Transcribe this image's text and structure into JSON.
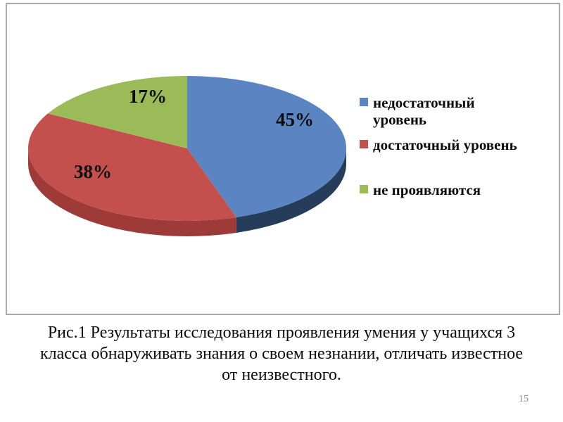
{
  "slide": {
    "caption_lines": [
      "Рис.1 Результаты исследования проявления умения у учащихся 3",
      "класса обнаруживать знания о своем незнании, отличать известное",
      "от неизвестного."
    ],
    "page_number": "15"
  },
  "chart_data": {
    "type": "pie",
    "style": "3d",
    "title": "",
    "start_angle_deg": -90,
    "direction": "clockwise",
    "legend_position": "right",
    "labels_shown": true,
    "total": 100,
    "slices": [
      {
        "label": "недостаточный уровень",
        "legend_lines": [
          "недостаточный",
          "уровень"
        ],
        "value": 45,
        "display": "45%",
        "color": "#5B84C2",
        "side_color": "#263C5B"
      },
      {
        "label": "достаточный уровень",
        "legend_lines": [
          "достаточный уровень"
        ],
        "value": 38,
        "display": "38%",
        "color": "#C4504E",
        "side_color": "#9E3B38"
      },
      {
        "label": "не проявляются",
        "legend_lines": [
          "не проявляются"
        ],
        "value": 17,
        "display": "17%",
        "color": "#9BBB59",
        "side_color": "#71903F"
      }
    ]
  }
}
